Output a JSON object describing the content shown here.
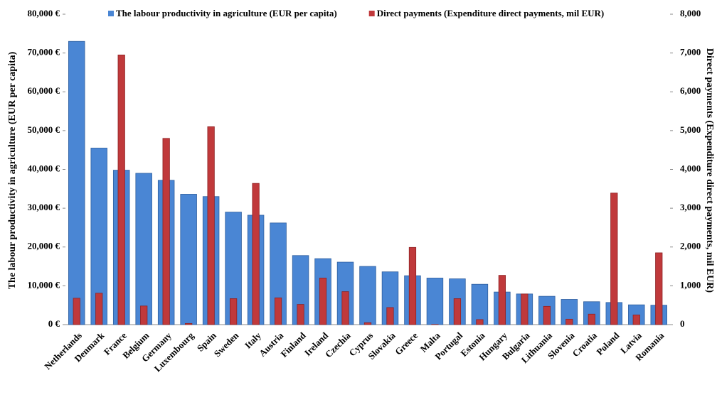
{
  "chart_data": {
    "type": "bar",
    "categories": [
      "Netherlands",
      "Denmark",
      "France",
      "Belgium",
      "Germany",
      "Luxembourg",
      "Spain",
      "Sweden",
      "Italy",
      "Austria",
      "Finland",
      "Ireland",
      "Czechia",
      "Cyprus",
      "Slovakia",
      "Greece",
      "Malta",
      "Portugal",
      "Estonia",
      "Hungary",
      "Bulgaria",
      "Lithuania",
      "Slovenia",
      "Croatia",
      "Poland",
      "Latvia",
      "Romania"
    ],
    "series": [
      {
        "name": "The labour productivity in agriculture (EUR per capita)",
        "color": "#4a86d4",
        "values": [
          73000,
          45500,
          39800,
          39000,
          37200,
          33600,
          33000,
          29000,
          28200,
          26200,
          17800,
          17000,
          16100,
          15000,
          13600,
          12600,
          12000,
          11800,
          10400,
          8400,
          7900,
          7300,
          6500,
          5900,
          5700,
          5100,
          5000
        ]
      },
      {
        "name": "Direct payments (Expenditure direct payments, mil EUR)",
        "color": "#c0393b",
        "axis": "y2",
        "values": [
          680,
          810,
          6950,
          480,
          4800,
          30,
          5100,
          670,
          3640,
          690,
          520,
          1200,
          850,
          50,
          440,
          1990,
          5,
          670,
          130,
          1270,
          790,
          470,
          140,
          270,
          3390,
          250,
          1850
        ]
      }
    ],
    "ylabel": "The labour productivity in agriculture (EUR per capita)",
    "y2label": "Direct payments (Expenditure direct payments, mil EUR)",
    "ylim": [
      0,
      80000
    ],
    "yticks": [
      {
        "value": 0,
        "label": "0 €"
      },
      {
        "value": 10000,
        "label": "10,000 €"
      },
      {
        "value": 20000,
        "label": "20,000 €"
      },
      {
        "value": 30000,
        "label": "30,000 €"
      },
      {
        "value": 40000,
        "label": "40,000 €"
      },
      {
        "value": 50000,
        "label": "50,000 €"
      },
      {
        "value": 60000,
        "label": "60,000 €"
      },
      {
        "value": 70000,
        "label": "70,000 €"
      },
      {
        "value": 80000,
        "label": "80,000 €"
      }
    ],
    "y2lim": [
      0,
      8000
    ],
    "y2ticks": [
      0,
      {
        "value": 1000,
        "label": "1,000"
      },
      {
        "value": 2000,
        "label": "2,000"
      },
      {
        "value": 3000,
        "label": "3,000"
      },
      {
        "value": 4000,
        "label": "4,000"
      },
      {
        "value": 5000,
        "label": "5,000"
      },
      {
        "value": 6000,
        "label": "6,000"
      },
      {
        "value": 7000,
        "label": "7,000"
      },
      {
        "value": 8000,
        "label": "8,000"
      }
    ],
    "legend": "top"
  }
}
